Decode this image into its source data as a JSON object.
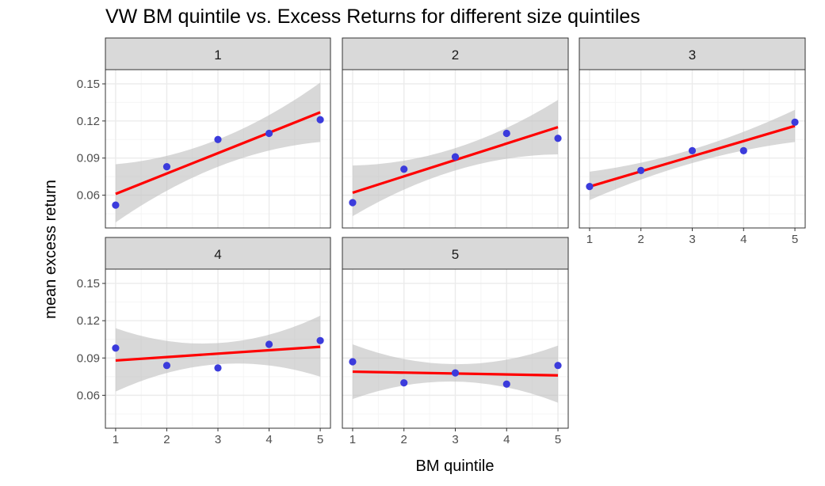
{
  "chart_data": {
    "type": "scatter",
    "title": "VW BM quintile vs. Excess Returns for different size quintiles",
    "xlabel": "BM quintile",
    "ylabel": "mean excess return",
    "x_ticks": [
      "1",
      "2",
      "3",
      "4",
      "5"
    ],
    "y_ticks": [
      "0.06",
      "0.09",
      "0.12",
      "0.15"
    ],
    "xlim": [
      0.8,
      5.2
    ],
    "ylim": [
      0.0335,
      0.1615
    ],
    "grid": true,
    "facets": [
      {
        "label": "1",
        "x": [
          1,
          2,
          3,
          4,
          5
        ],
        "y": [
          0.052,
          0.083,
          0.105,
          0.11,
          0.121
        ],
        "fit": {
          "y_start": 0.061,
          "y_end": 0.127
        },
        "band": {
          "lower_start": 0.038,
          "lower_end": 0.103,
          "upper_start": 0.085,
          "upper_end": 0.151,
          "lower_mid": 0.083,
          "upper_mid": 0.105
        }
      },
      {
        "label": "2",
        "x": [
          1,
          2,
          3,
          4,
          5
        ],
        "y": [
          0.054,
          0.081,
          0.091,
          0.11,
          0.106
        ],
        "fit": {
          "y_start": 0.062,
          "y_end": 0.115
        },
        "band": {
          "lower_start": 0.043,
          "lower_end": 0.093,
          "upper_start": 0.084,
          "upper_end": 0.137,
          "lower_mid": 0.08,
          "upper_mid": 0.098
        }
      },
      {
        "label": "3",
        "x": [
          1,
          2,
          3,
          4,
          5
        ],
        "y": [
          0.067,
          0.08,
          0.096,
          0.096,
          0.119
        ],
        "fit": {
          "y_start": 0.067,
          "y_end": 0.116
        },
        "band": {
          "lower_start": 0.056,
          "lower_end": 0.103,
          "upper_start": 0.079,
          "upper_end": 0.129,
          "lower_mid": 0.086,
          "upper_mid": 0.097
        }
      },
      {
        "label": "4",
        "x": [
          1,
          2,
          3,
          4,
          5
        ],
        "y": [
          0.098,
          0.084,
          0.082,
          0.101,
          0.104
        ],
        "fit": {
          "y_start": 0.088,
          "y_end": 0.099
        },
        "band": {
          "lower_start": 0.063,
          "lower_end": 0.075,
          "upper_start": 0.114,
          "upper_end": 0.124,
          "lower_mid": 0.085,
          "upper_mid": 0.102
        }
      },
      {
        "label": "5",
        "x": [
          1,
          2,
          3,
          4,
          5
        ],
        "y": [
          0.087,
          0.07,
          0.078,
          0.069,
          0.084
        ],
        "fit": {
          "y_start": 0.079,
          "y_end": 0.076
        },
        "band": {
          "lower_start": 0.057,
          "lower_end": 0.054,
          "upper_start": 0.101,
          "upper_end": 0.1,
          "lower_mid": 0.071,
          "upper_mid": 0.085
        }
      }
    ],
    "colors": {
      "points": "#3b3bdc",
      "fit_line": "#ff0000",
      "band": "#bebebe",
      "strip_fill": "#d9d9d9",
      "panel_border": "#333333",
      "grid_major": "#ebebeb",
      "grid_minor": "#f5f5f5"
    }
  }
}
